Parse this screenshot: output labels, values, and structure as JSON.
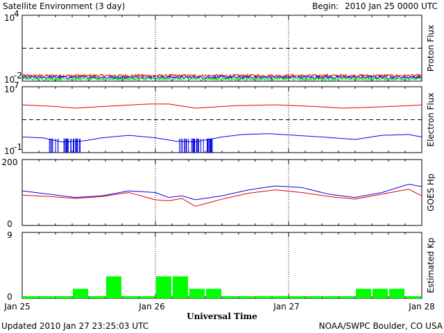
{
  "header": {
    "title": "Satellite Environment (3 day)",
    "begin_label": "Begin:",
    "begin_value": "2010 Jan 25 0000 UTC"
  },
  "footer": {
    "updated": "Updated 2010 Jan 27 23:25:03 UTC",
    "credit": "NOAA/SWPC Boulder, CO USA",
    "xlabel": "Universal Time"
  },
  "x_ticks": [
    "Jan 25",
    "Jan 26",
    "Jan 27",
    "Jan 28"
  ],
  "colors": {
    "red": "#e00000",
    "blue": "#0000e0",
    "green": "#00e000",
    "kp_bar": "#00ff00",
    "frame": "#000000"
  },
  "chart_data": [
    {
      "type": "line",
      "ylabel": "Proton Flux",
      "yscale": "log",
      "ylim": [
        0.01,
        10000
      ],
      "ytick_labels": [
        {
          "base": "10",
          "exp": "4"
        },
        {
          "base": "10",
          "exp": "-2"
        }
      ],
      "threshold_dashed": 10,
      "xlim_days": [
        0,
        3
      ],
      "series": [
        {
          "color": "red",
          "mean_log10": -1.5,
          "noise": 0.12
        },
        {
          "color": "blue",
          "mean_log10": -1.65,
          "noise": 0.12
        },
        {
          "color": "green",
          "mean_log10": -1.8,
          "noise": 0.12
        }
      ]
    },
    {
      "type": "line",
      "ylabel": "Electron Flux",
      "yscale": "log",
      "ylim": [
        0.1,
        10000000
      ],
      "ytick_labels": [
        {
          "base": "10",
          "exp": "7"
        },
        {
          "base": "10",
          "exp": "-1"
        }
      ],
      "threshold_dashed": 1000,
      "series": [
        {
          "color": "red",
          "x": [
            0,
            0.25,
            0.4,
            0.6,
            0.95,
            1.1,
            1.3,
            1.6,
            1.9,
            2.2,
            2.4,
            2.6,
            2.9,
            3.0
          ],
          "y_log10": [
            4.8,
            4.6,
            4.4,
            4.6,
            4.9,
            4.9,
            4.4,
            4.7,
            4.8,
            4.6,
            4.4,
            4.5,
            4.7,
            4.8
          ]
        },
        {
          "color": "blue",
          "x": [
            0,
            0.15,
            0.3,
            0.45,
            0.6,
            0.8,
            1.0,
            1.15,
            1.3,
            1.5,
            1.65,
            1.85,
            2.05,
            2.25,
            2.5,
            2.7,
            2.9,
            3.0
          ],
          "y_log10": [
            0.9,
            0.8,
            0.3,
            0.4,
            0.8,
            1.1,
            0.8,
            0.4,
            0.3,
            0.9,
            1.2,
            1.3,
            1.1,
            0.9,
            0.6,
            1.1,
            1.2,
            0.9
          ]
        }
      ]
    },
    {
      "type": "line",
      "ylabel": "GOES Hp",
      "yscale": "linear",
      "ylim": [
        0,
        200
      ],
      "ytick_labels": [
        "200",
        "0"
      ],
      "series": [
        {
          "color": "blue",
          "x": [
            0,
            0.2,
            0.4,
            0.6,
            0.8,
            1.0,
            1.1,
            1.2,
            1.3,
            1.5,
            1.7,
            1.9,
            2.1,
            2.3,
            2.5,
            2.7,
            2.9,
            3.0
          ],
          "y": [
            105,
            95,
            85,
            90,
            105,
            100,
            85,
            90,
            78,
            90,
            108,
            120,
            115,
            95,
            85,
            100,
            125,
            118
          ]
        },
        {
          "color": "red",
          "x": [
            0,
            0.2,
            0.4,
            0.6,
            0.8,
            1.0,
            1.1,
            1.2,
            1.3,
            1.5,
            1.7,
            1.9,
            2.1,
            2.3,
            2.5,
            2.7,
            2.9,
            3.0
          ],
          "y": [
            92,
            88,
            82,
            88,
            100,
            78,
            75,
            82,
            58,
            80,
            98,
            108,
            100,
            88,
            80,
            95,
            110,
            90
          ]
        }
      ]
    },
    {
      "type": "bar",
      "ylabel": "Estimated Kp",
      "yscale": "linear",
      "ylim": [
        0,
        9
      ],
      "ytick_labels": [
        "9",
        "0"
      ],
      "bar_interval_hours": 3,
      "values": [
        0.3,
        0.3,
        0.3,
        1.3,
        0.3,
        3.0,
        0.3,
        0.3,
        3.0,
        3.0,
        1.3,
        1.3,
        0.3,
        0.3,
        0.3,
        0.3,
        0.3,
        0.3,
        0.3,
        0.3,
        1.3,
        1.3,
        1.3,
        0.3
      ]
    }
  ]
}
